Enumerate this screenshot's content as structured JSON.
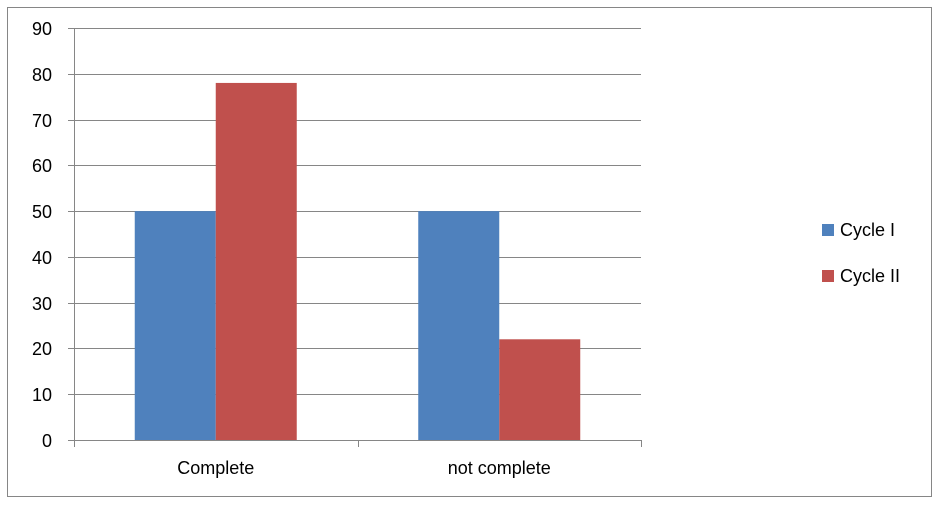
{
  "chart_data": {
    "type": "bar",
    "categories": [
      "Complete",
      "not complete"
    ],
    "series": [
      {
        "name": "Cycle I",
        "values": [
          50,
          50
        ],
        "color": "#4F81BD"
      },
      {
        "name": "Cycle II",
        "values": [
          78,
          22
        ],
        "color": "#C0504D"
      }
    ],
    "ylim": [
      0,
      90
    ],
    "yticks": [
      0,
      10,
      20,
      30,
      40,
      50,
      60,
      70,
      80,
      90
    ],
    "grid": true,
    "legend": "right"
  },
  "colors": {
    "frame": "#868686",
    "grid": "#868686",
    "axis": "#868686",
    "text": "#000000"
  }
}
